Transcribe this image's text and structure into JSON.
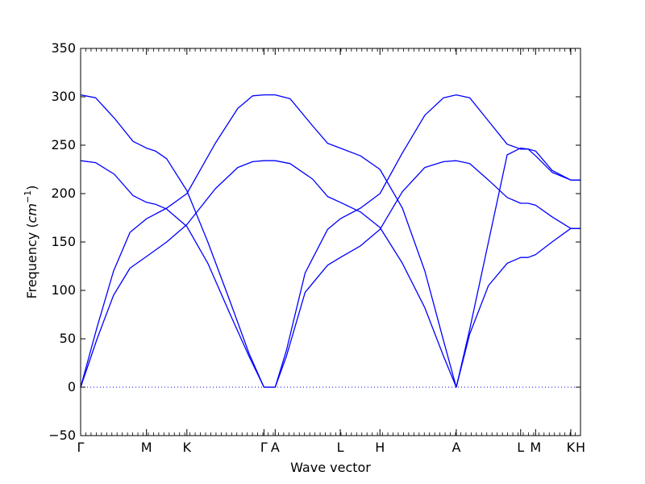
{
  "chart_data": {
    "type": "line",
    "title": "",
    "xlabel": "Wave vector",
    "ylabel_prefix": "Frequency (",
    "ylabel_unit_base": "cm",
    "ylabel_unit_exp": "−1",
    "ylabel_suffix": ")",
    "ylim": [
      -50,
      350
    ],
    "yticks": [
      -50,
      0,
      50,
      100,
      150,
      200,
      250,
      300,
      350
    ],
    "ytick_labels": [
      "−50",
      "0",
      "50",
      "100",
      "150",
      "200",
      "250",
      "300",
      "350"
    ],
    "xlim": [
      0,
      6.68
    ],
    "xtick_positions": [
      0,
      0.88,
      1.42,
      2.45,
      2.6,
      3.47,
      4.0,
      5.02,
      5.88,
      6.08,
      6.55,
      6.68
    ],
    "xtick_labels": [
      "Γ",
      "M",
      "K",
      "Γ",
      "A",
      "L",
      "H",
      "A",
      "L",
      "M",
      "K",
      "H"
    ],
    "grid": false,
    "zero_line_style": "dotted",
    "colors": {
      "band": "#0000ff",
      "zero_line": "#0000ff",
      "axes": "#000000"
    },
    "series": [
      {
        "points": [
          [
            0,
            0
          ],
          [
            0.22,
            62
          ],
          [
            0.44,
            120
          ],
          [
            0.66,
            160
          ],
          [
            0.88,
            174
          ],
          [
            1.15,
            185
          ],
          [
            1.42,
            200
          ],
          [
            1.8,
            252
          ],
          [
            2.1,
            288
          ],
          [
            2.3,
            301
          ],
          [
            2.45,
            302
          ],
          [
            2.6,
            302
          ],
          [
            2.8,
            298
          ],
          [
            3.1,
            270
          ],
          [
            3.3,
            252
          ],
          [
            3.47,
            247
          ],
          [
            3.74,
            239
          ],
          [
            4.0,
            225
          ],
          [
            4.3,
            185
          ],
          [
            4.6,
            120
          ],
          [
            4.85,
            48
          ],
          [
            5.02,
            0
          ],
          [
            5.2,
            60
          ],
          [
            5.45,
            150
          ],
          [
            5.7,
            240
          ],
          [
            5.88,
            247
          ],
          [
            5.98,
            246
          ],
          [
            6.08,
            239
          ],
          [
            6.3,
            222
          ],
          [
            6.55,
            214
          ],
          [
            6.68,
            214
          ]
        ]
      },
      {
        "points": [
          [
            0,
            302
          ],
          [
            0.2,
            299
          ],
          [
            0.45,
            278
          ],
          [
            0.7,
            254
          ],
          [
            0.88,
            247
          ],
          [
            1.0,
            244
          ],
          [
            1.15,
            236
          ],
          [
            1.42,
            203
          ],
          [
            1.7,
            150
          ],
          [
            2.0,
            88
          ],
          [
            2.25,
            35
          ],
          [
            2.45,
            0
          ],
          [
            2.6,
            0
          ],
          [
            2.75,
            38
          ],
          [
            3.0,
            118
          ],
          [
            3.3,
            163
          ],
          [
            3.47,
            174
          ],
          [
            3.74,
            185
          ],
          [
            4.0,
            200
          ],
          [
            4.3,
            242
          ],
          [
            4.6,
            281
          ],
          [
            4.85,
            299
          ],
          [
            5.02,
            302
          ],
          [
            5.2,
            299
          ],
          [
            5.45,
            275
          ],
          [
            5.7,
            251
          ],
          [
            5.88,
            246
          ],
          [
            5.98,
            246
          ],
          [
            6.08,
            244
          ],
          [
            6.3,
            224
          ],
          [
            6.55,
            214
          ],
          [
            6.68,
            214
          ]
        ]
      },
      {
        "points": [
          [
            0,
            0
          ],
          [
            0.22,
            50
          ],
          [
            0.44,
            95
          ],
          [
            0.66,
            123
          ],
          [
            0.88,
            135
          ],
          [
            1.15,
            150
          ],
          [
            1.42,
            168
          ],
          [
            1.8,
            205
          ],
          [
            2.1,
            227
          ],
          [
            2.3,
            233
          ],
          [
            2.45,
            234
          ],
          [
            2.6,
            234
          ],
          [
            2.8,
            231
          ],
          [
            3.1,
            215
          ],
          [
            3.3,
            197
          ],
          [
            3.47,
            191
          ],
          [
            3.74,
            181
          ],
          [
            4.0,
            165
          ],
          [
            4.3,
            128
          ],
          [
            4.6,
            82
          ],
          [
            4.85,
            32
          ],
          [
            5.02,
            0
          ],
          [
            5.2,
            55
          ],
          [
            5.45,
            105
          ],
          [
            5.7,
            128
          ],
          [
            5.88,
            134
          ],
          [
            5.98,
            134
          ],
          [
            6.08,
            137
          ],
          [
            6.3,
            150
          ],
          [
            6.55,
            164
          ],
          [
            6.68,
            164
          ]
        ]
      },
      {
        "points": [
          [
            0,
            234
          ],
          [
            0.2,
            232
          ],
          [
            0.45,
            220
          ],
          [
            0.7,
            198
          ],
          [
            0.88,
            191
          ],
          [
            1.0,
            189
          ],
          [
            1.15,
            184
          ],
          [
            1.42,
            166
          ],
          [
            1.7,
            128
          ],
          [
            2.0,
            75
          ],
          [
            2.25,
            32
          ],
          [
            2.45,
            0
          ],
          [
            2.6,
            0
          ],
          [
            2.75,
            32
          ],
          [
            3.0,
            98
          ],
          [
            3.3,
            126
          ],
          [
            3.47,
            134
          ],
          [
            3.74,
            146
          ],
          [
            4.0,
            163
          ],
          [
            4.3,
            202
          ],
          [
            4.6,
            227
          ],
          [
            4.85,
            233
          ],
          [
            5.02,
            234
          ],
          [
            5.2,
            231
          ],
          [
            5.45,
            214
          ],
          [
            5.7,
            196
          ],
          [
            5.88,
            190
          ],
          [
            5.98,
            190
          ],
          [
            6.08,
            188
          ],
          [
            6.3,
            176
          ],
          [
            6.55,
            164
          ],
          [
            6.68,
            164
          ]
        ]
      }
    ]
  }
}
